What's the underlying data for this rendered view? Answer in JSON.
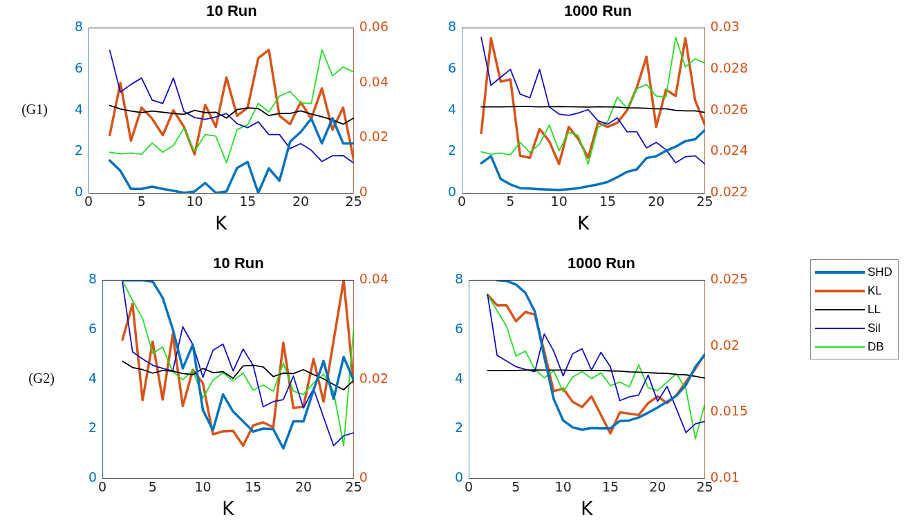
{
  "chart_data": [
    {
      "type": "line",
      "title": "10 Run",
      "xlabel": "K",
      "annotations": [
        "(G1)"
      ],
      "marker": "none",
      "grid": false,
      "x": [
        2,
        3,
        4,
        5,
        6,
        7,
        8,
        9,
        10,
        11,
        12,
        13,
        14,
        15,
        16,
        17,
        18,
        19,
        20,
        21,
        22,
        23,
        24,
        25
      ],
      "xlim": [
        0,
        25
      ],
      "xticks": [
        0,
        5,
        10,
        15,
        20,
        25
      ],
      "ylim": [
        0,
        8
      ],
      "yticks": [
        0,
        2,
        4,
        6,
        8
      ],
      "y2lim": [
        0,
        0.06
      ],
      "y2ticks": [
        0,
        0.02,
        0.04,
        0.06
      ],
      "series": [
        {
          "color": "#0072bd",
          "values": [
            1.57,
            1.07,
            0.19,
            0.19,
            0.3,
            0.19,
            0.1,
            0,
            0.07,
            0.48,
            0,
            0.07,
            1.21,
            1.5,
            0,
            1.19,
            0.59,
            2.48,
            2.95,
            3.6,
            2.4,
            3.62,
            2.4,
            2.4
          ]
        },
        {
          "color": "#d95319",
          "axis": "y2",
          "values": [
            0.021,
            0.04,
            0.019,
            0.031,
            0.027,
            0.021,
            0.03,
            0.024,
            0.014,
            0.032,
            0.024,
            0.042,
            0.028,
            0.031,
            0.049,
            0.052,
            0.028,
            0.025,
            0.033,
            0.027,
            0.038,
            0.023,
            0.031,
            0.012
          ]
        },
        {
          "color": "#000000",
          "values": [
            4.24,
            4.07,
            3.97,
            3.89,
            3.97,
            3.91,
            3.85,
            3.81,
            4.0,
            3.89,
            3.91,
            3.63,
            4.04,
            4.12,
            4.09,
            3.75,
            3.85,
            3.85,
            3.98,
            3.83,
            3.69,
            3.54,
            3.33,
            3.63
          ]
        },
        {
          "color": "#1010c8",
          "values": [
            6.92,
            4.89,
            5.26,
            5.57,
            4.5,
            4.34,
            5.57,
            3.95,
            3.65,
            3.57,
            3.68,
            3.85,
            3.36,
            3.16,
            3.45,
            2.83,
            2.83,
            2.15,
            2.39,
            2.07,
            1.52,
            1.8,
            1.81,
            1.45
          ]
        },
        {
          "color": "#22e022",
          "values": [
            1.97,
            1.89,
            1.93,
            1.87,
            2.42,
            1.97,
            2.3,
            3.13,
            2.01,
            2.83,
            2.75,
            1.46,
            3.07,
            3.3,
            4.34,
            3.92,
            4.69,
            4.92,
            4.36,
            4.34,
            6.94,
            5.68,
            6.1,
            5.86
          ]
        }
      ]
    },
    {
      "type": "line",
      "title": "1000 Run",
      "xlabel": "K",
      "marker": "none",
      "grid": false,
      "x": [
        2,
        3,
        4,
        5,
        6,
        7,
        8,
        9,
        10,
        11,
        12,
        13,
        14,
        15,
        16,
        17,
        18,
        19,
        20,
        21,
        22,
        23,
        24,
        25
      ],
      "xlim": [
        0,
        25
      ],
      "xticks": [
        0,
        5,
        10,
        15,
        20,
        25
      ],
      "ylim": [
        0,
        8
      ],
      "yticks": [
        0,
        2,
        4,
        6,
        8
      ],
      "y2lim": [
        0.022,
        0.03
      ],
      "y2ticks": [
        0.022,
        0.024,
        0.026,
        0.028,
        0.03
      ],
      "series": [
        {
          "color": "#0072bd",
          "values": [
            1.44,
            1.78,
            0.67,
            0.41,
            0.23,
            0.21,
            0.18,
            0.16,
            0.14,
            0.18,
            0.23,
            0.32,
            0.41,
            0.53,
            0.76,
            1.02,
            1.14,
            1.69,
            1.78,
            2.04,
            2.24,
            2.51,
            2.6,
            3.05
          ]
        },
        {
          "color": "#d95319",
          "axis": "y2",
          "values": [
            0.0249,
            0.0295,
            0.0274,
            0.0275,
            0.0238,
            0.0237,
            0.0251,
            0.0245,
            0.0234,
            0.0252,
            0.0246,
            0.0237,
            0.0254,
            0.0252,
            0.0254,
            0.026,
            0.0271,
            0.0286,
            0.0252,
            0.027,
            0.0267,
            0.0295,
            0.0265,
            0.0253
          ]
        },
        {
          "color": "#000000",
          "values": [
            4.17,
            4.17,
            4.17,
            4.18,
            4.19,
            4.19,
            4.17,
            4.18,
            4.19,
            4.18,
            4.17,
            4.16,
            4.18,
            4.17,
            4.16,
            4.13,
            4.12,
            4.1,
            4.08,
            4.08,
            4.0,
            3.98,
            3.98,
            3.9
          ]
        },
        {
          "color": "#1010c8",
          "values": [
            7.54,
            5.22,
            5.61,
            5.99,
            4.79,
            4.61,
            5.99,
            4.17,
            3.82,
            3.76,
            3.88,
            4.04,
            3.5,
            3.33,
            3.64,
            2.96,
            2.96,
            2.18,
            2.45,
            2.1,
            1.46,
            1.75,
            1.8,
            1.4
          ]
        },
        {
          "color": "#22e022",
          "values": [
            1.99,
            1.87,
            1.93,
            1.85,
            2.45,
            1.96,
            2.37,
            3.29,
            2.04,
            2.94,
            2.78,
            1.4,
            3.17,
            3.45,
            4.64,
            4.09,
            5.05,
            5.26,
            4.7,
            4.64,
            7.54,
            6.11,
            6.5,
            6.3
          ]
        }
      ]
    },
    {
      "type": "line",
      "title": "10 Run",
      "xlabel": "K",
      "annotations": [
        "(G2)"
      ],
      "marker": "none",
      "grid": false,
      "x": [
        2,
        3,
        4,
        5,
        6,
        7,
        8,
        9,
        10,
        11,
        12,
        13,
        14,
        15,
        16,
        17,
        18,
        19,
        20,
        21,
        22,
        23,
        24,
        25
      ],
      "xlim": [
        0,
        25
      ],
      "xticks": [
        0,
        5,
        10,
        15,
        20,
        25
      ],
      "ylim": [
        0,
        8
      ],
      "yticks": [
        0,
        2,
        4,
        6,
        8
      ],
      "y2lim": [
        0,
        0.04
      ],
      "y2ticks": [
        0,
        0.02,
        0.04
      ],
      "series": [
        {
          "color": "#0072bd",
          "values": [
            8,
            8,
            8,
            7.95,
            7.29,
            6.03,
            4.44,
            5.4,
            2.76,
            1.95,
            3.39,
            2.7,
            2.3,
            1.89,
            2.01,
            1.99,
            1.21,
            2.3,
            2.3,
            3.56,
            4.74,
            3.21,
            4.9,
            3.96
          ]
        },
        {
          "color": "#d95319",
          "axis": "y2",
          "values": [
            0.028,
            0.0352,
            0.0158,
            0.0276,
            0.0159,
            0.0291,
            0.0146,
            0.0219,
            0.0192,
            0.0089,
            0.0095,
            0.0096,
            0.0066,
            0.0107,
            0.0113,
            0.0103,
            0.0274,
            0.0142,
            0.0145,
            0.0241,
            0.0155,
            0.0278,
            0.04,
            0.0192
          ]
        },
        {
          "color": "#000000",
          "values": [
            4.73,
            4.48,
            4.39,
            4.25,
            4.36,
            4.33,
            4.23,
            4.19,
            4.44,
            4.27,
            4.31,
            4.04,
            4.54,
            4.57,
            4.5,
            4.11,
            4.25,
            4.23,
            4.39,
            4.19,
            4.02,
            3.79,
            3.58,
            3.96
          ]
        },
        {
          "color": "#1010c8",
          "values": [
            7.92,
            5.11,
            4.82,
            4.57,
            4.44,
            4.34,
            6.12,
            5.4,
            4.08,
            5.17,
            5.42,
            4.34,
            5.22,
            4.56,
            2.89,
            3.1,
            3.18,
            4.13,
            2.84,
            3.62,
            2.47,
            1.32,
            1.72,
            1.84
          ]
        },
        {
          "color": "#22e022",
          "values": [
            7.98,
            7.18,
            6.46,
            5.05,
            5.3,
            4.31,
            3.98,
            4.36,
            3.25,
            3.96,
            4.27,
            3.94,
            4.25,
            3.56,
            3.77,
            3.52,
            4.65,
            3.52,
            3.39,
            3.85,
            4.21,
            3.5,
            1.32,
            6.08
          ]
        }
      ]
    },
    {
      "type": "line",
      "title": "1000 Run",
      "xlabel": "K",
      "marker": "none",
      "grid": false,
      "legend": "right",
      "x": [
        2,
        3,
        4,
        5,
        6,
        7,
        8,
        9,
        10,
        11,
        12,
        13,
        14,
        15,
        16,
        17,
        18,
        19,
        20,
        21,
        22,
        23,
        24,
        25
      ],
      "xlim": [
        0,
        25
      ],
      "xticks": [
        0,
        5,
        10,
        15,
        20,
        25
      ],
      "ylim": [
        0,
        8
      ],
      "yticks": [
        0,
        2,
        4,
        6,
        8
      ],
      "y2lim": [
        0.01,
        0.025
      ],
      "y2ticks": [
        0.01,
        0.015,
        0.02,
        0.025
      ],
      "series": [
        {
          "name": "SHD",
          "color": "#0072bd",
          "values": [
            null,
            8,
            7.97,
            7.83,
            7.49,
            6.74,
            4.91,
            3.2,
            2.34,
            2.06,
            1.97,
            2.03,
            2.02,
            2.02,
            2.32,
            2.34,
            2.46,
            2.65,
            2.86,
            3.09,
            3.34,
            3.77,
            4.5,
            5.0
          ]
        },
        {
          "name": "KL",
          "color": "#d95319",
          "axis": "y2",
          "values": [
            0.0239,
            0.0231,
            0.0231,
            0.0219,
            0.0226,
            0.0224,
            0.0196,
            0.0166,
            0.0168,
            0.0158,
            0.0154,
            0.0162,
            0.0148,
            0.0134,
            0.015,
            0.0149,
            0.0148,
            0.0157,
            0.0162,
            0.0157,
            0.0163,
            0.0173,
            0.0183,
            0.0194
          ]
        },
        {
          "name": "LL",
          "color": "#000000",
          "values": [
            4.35,
            4.35,
            4.35,
            4.36,
            4.37,
            4.38,
            4.37,
            4.37,
            4.37,
            4.36,
            4.36,
            4.36,
            4.36,
            4.34,
            4.33,
            4.3,
            4.29,
            4.27,
            4.25,
            4.24,
            4.2,
            4.18,
            4.12,
            4.05
          ]
        },
        {
          "name": "Sil",
          "color": "#1010c8",
          "values": [
            7.41,
            4.97,
            4.74,
            4.51,
            4.4,
            4.31,
            5.83,
            5.14,
            4.14,
            5.03,
            5.23,
            4.37,
            5.09,
            4.51,
            3.14,
            3.29,
            3.37,
            4.17,
            3.11,
            3.71,
            2.8,
            1.85,
            2.2,
            2.3
          ]
        },
        {
          "name": "DB",
          "color": "#22e022",
          "values": [
            7.41,
            6.77,
            6.15,
            4.94,
            5.14,
            4.4,
            4.06,
            4.34,
            3.49,
            4.09,
            4.31,
            4.03,
            4.26,
            3.74,
            3.89,
            3.69,
            4.59,
            3.66,
            3.54,
            3.89,
            4.23,
            3.6,
            1.6,
            3.0
          ]
        }
      ]
    }
  ]
}
